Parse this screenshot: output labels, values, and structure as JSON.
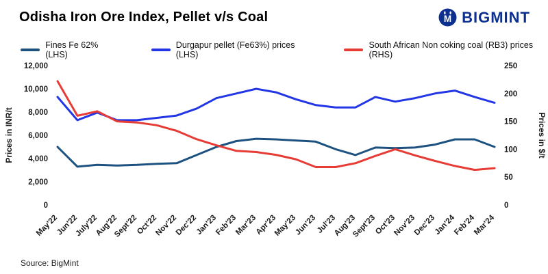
{
  "title": "Odisha Iron Ore Index, Pellet v/s Coal",
  "logo": {
    "text": "BIGMINT",
    "color": "#0d2f8f"
  },
  "source": "Source: BigMint",
  "chart_data": {
    "type": "line",
    "title": "Odisha Iron Ore Index, Pellet v/s Coal",
    "ylabel_left": "Prices in INR/t",
    "ylabel_right": "Prices in $/t",
    "ylim_left": [
      0,
      12000
    ],
    "ylim_right": [
      0,
      250
    ],
    "grid": false,
    "legend_position": "top",
    "categories": [
      "May'22",
      "Jun'22",
      "July'22",
      "Aug'22",
      "Sept'22",
      "Oct'22",
      "Nov'22",
      "Dec'22",
      "Jan'23",
      "Feb'23",
      "Mar'23",
      "Apr'23",
      "May'23",
      "Jun'23",
      "Jul'23",
      "Aug'23",
      "Sept'23",
      "Oct'23",
      "Nov'23",
      "Dec'23",
      "Jan'24",
      "Feb'24",
      "Mar'24"
    ],
    "yticks_left": [
      {
        "v": 0,
        "label": "0"
      },
      {
        "v": 2000,
        "label": "2,000"
      },
      {
        "v": 4000,
        "label": "4,000"
      },
      {
        "v": 6000,
        "label": "6,000"
      },
      {
        "v": 8000,
        "label": "8,000"
      },
      {
        "v": 10000,
        "label": "10,000"
      },
      {
        "v": 12000,
        "label": "12,000"
      }
    ],
    "yticks_right": [
      {
        "v": 0,
        "label": "0"
      },
      {
        "v": 50,
        "label": "50"
      },
      {
        "v": 100,
        "label": "100"
      },
      {
        "v": 150,
        "label": "150"
      },
      {
        "v": 200,
        "label": "200"
      },
      {
        "v": 250,
        "label": "250"
      }
    ],
    "series": [
      {
        "name": "Fines Fe 62% (LHS)",
        "axis": "left",
        "color": "#1d517f",
        "values": [
          5000,
          3300,
          3450,
          3400,
          3450,
          3550,
          3600,
          4300,
          5000,
          5500,
          5700,
          5650,
          5550,
          5450,
          4800,
          4300,
          4950,
          4900,
          4950,
          5200,
          5650,
          5650,
          5000
        ]
      },
      {
        "name": "Durgapur pellet (Fe63%) prices (LHS)",
        "axis": "left",
        "color": "#2236e6",
        "values": [
          9300,
          7300,
          7950,
          7300,
          7300,
          7500,
          7700,
          8300,
          9200,
          9600,
          10000,
          9700,
          9100,
          8600,
          8400,
          8400,
          9300,
          8900,
          9200,
          9600,
          9850,
          9300,
          8800
        ]
      },
      {
        "name": "South African Non coking coal (RB3) prices (RHS)",
        "axis": "right",
        "color": "#e63c35",
        "values": [
          222,
          160,
          168,
          150,
          148,
          143,
          133,
          118,
          107,
          97,
          95,
          90,
          82,
          68,
          68,
          75,
          88,
          100,
          89,
          79,
          70,
          63,
          66
        ]
      }
    ]
  }
}
